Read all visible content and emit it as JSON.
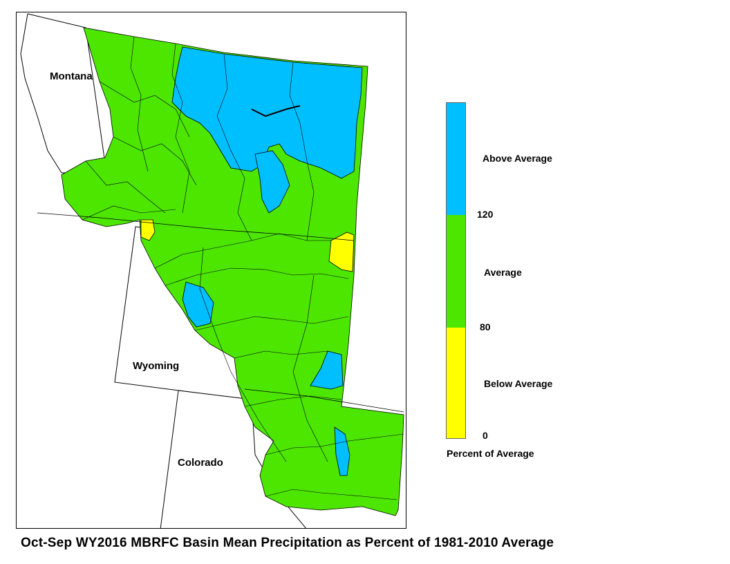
{
  "title": "Oct-Sep WY2016 MBRFC Basin Mean Precipitation as Percent of 1981-2010 Average",
  "states": {
    "montana": "Montana",
    "wyoming": "Wyoming",
    "colorado": "Colorado"
  },
  "legend": {
    "caption": "Percent of Average",
    "categories": [
      {
        "label": "Above Average",
        "color": "#00bfff",
        "min": 120,
        "max": null
      },
      {
        "label": "Average",
        "color": "#4ce600",
        "min": 80,
        "max": 120
      },
      {
        "label": "Below Average",
        "color": "#ffff00",
        "min": 0,
        "max": 80
      }
    ],
    "breaks": [
      "120",
      "80",
      "0"
    ]
  },
  "colors": {
    "above": "#00bfff",
    "average": "#4ce600",
    "below": "#ffff00",
    "outline": "#000000"
  }
}
